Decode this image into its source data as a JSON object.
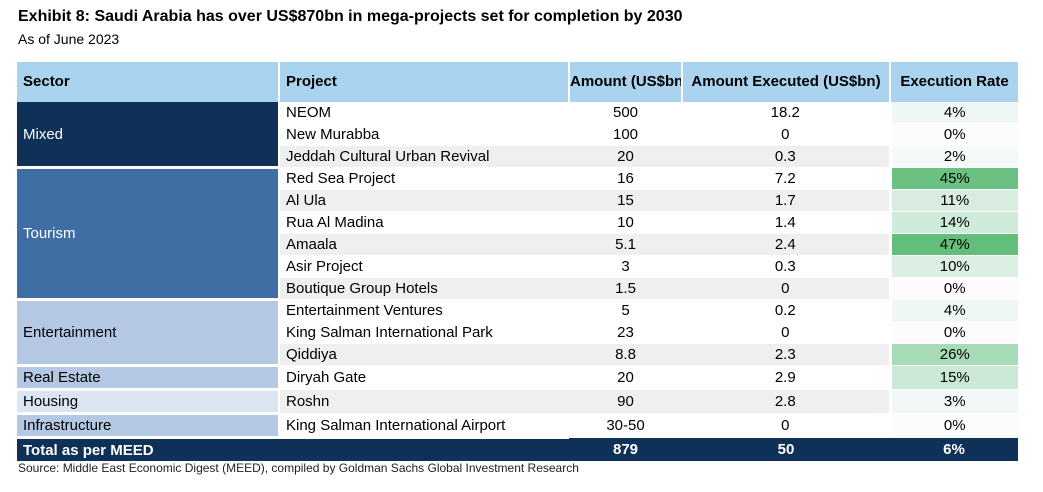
{
  "title": "Exhibit 8: Saudi Arabia has over US$870bn in mega-projects set for completion by 2030",
  "subtitle": "As of June 2023",
  "headers": {
    "sector": "Sector",
    "project": "Project",
    "amount": "Amount (US$bn)",
    "executed": "Amount Executed (US$bn)",
    "rate": "Execution Rate"
  },
  "sectors": {
    "mixed": "Mixed",
    "tourism": "Tourism",
    "entertainment": "Entertainment",
    "real_estate": "Real Estate",
    "housing": "Housing",
    "infrastructure": "Infrastructure"
  },
  "rows": [
    {
      "project": "NEOM",
      "amount": "500",
      "executed": "18.2",
      "rate": "4%"
    },
    {
      "project": "New Murabba",
      "amount": "100",
      "executed": "0",
      "rate": "0%"
    },
    {
      "project": "Jeddah Cultural Urban Revival",
      "amount": "20",
      "executed": "0.3",
      "rate": "2%"
    },
    {
      "project": "Red Sea Project",
      "amount": "16",
      "executed": "7.2",
      "rate": "45%"
    },
    {
      "project": "Al Ula",
      "amount": "15",
      "executed": "1.7",
      "rate": "11%"
    },
    {
      "project": "Rua Al Madina",
      "amount": "10",
      "executed": "1.4",
      "rate": "14%"
    },
    {
      "project": "Amaala",
      "amount": "5.1",
      "executed": "2.4",
      "rate": "47%"
    },
    {
      "project": "Asir Project",
      "amount": "3",
      "executed": "0.3",
      "rate": "10%"
    },
    {
      "project": "Boutique Group Hotels",
      "amount": "1.5",
      "executed": "0",
      "rate": "0%"
    },
    {
      "project": "Entertainment Ventures",
      "amount": "5",
      "executed": "0.2",
      "rate": "4%"
    },
    {
      "project": "King Salman International Park",
      "amount": "23",
      "executed": "0",
      "rate": "0%"
    },
    {
      "project": "Qiddiya",
      "amount": "8.8",
      "executed": "2.3",
      "rate": "26%"
    },
    {
      "project": "Diryah Gate",
      "amount": "20",
      "executed": "2.9",
      "rate": "15%"
    },
    {
      "project": "Roshn",
      "amount": "90",
      "executed": "2.8",
      "rate": "3%"
    },
    {
      "project": "King Salman International Airport",
      "amount": "30-50",
      "executed": "0",
      "rate": "0%"
    }
  ],
  "total": {
    "label": "Total as per MEED",
    "amount": "879",
    "executed": "50",
    "rate": "6%"
  },
  "source": "Source: Middle East Economic Digest (MEED), compiled by Goldman Sachs Global Investment Research",
  "colors": {
    "header_bg": "#a9d3ef",
    "navy": "#0f3057",
    "tourism_blue": "#3f6ea4",
    "light_blue": "#b4c7e3",
    "heat_high": "#63be7b",
    "heat_zero": "#fcfcff"
  }
}
